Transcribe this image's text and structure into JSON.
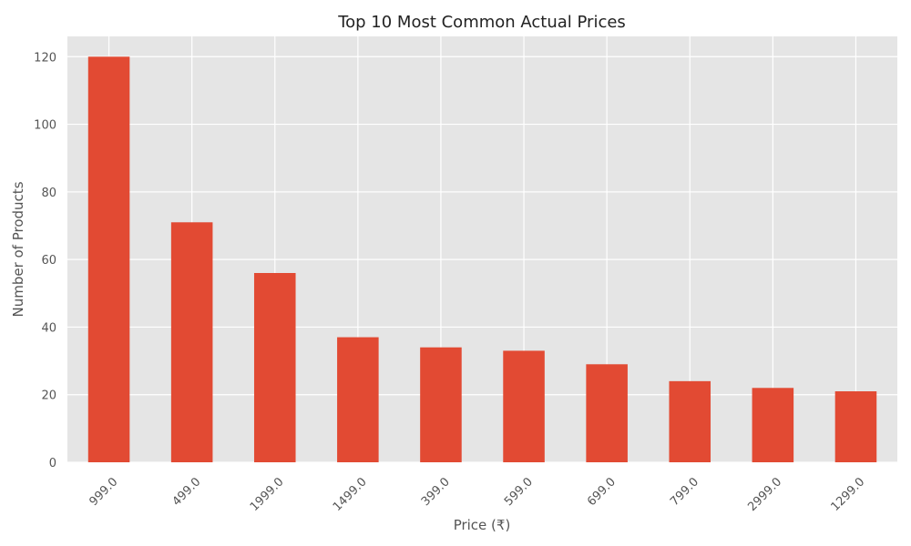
{
  "chart_data": {
    "type": "bar",
    "title": "Top 10 Most Common Actual Prices",
    "xlabel": "Price (₹)",
    "ylabel": "Number of Products",
    "categories": [
      "999.0",
      "499.0",
      "1999.0",
      "1499.0",
      "399.0",
      "599.0",
      "699.0",
      "799.0",
      "2999.0",
      "1299.0"
    ],
    "values": [
      120,
      71,
      56,
      37,
      34,
      33,
      29,
      24,
      22,
      21
    ],
    "ylim": [
      0,
      126
    ],
    "yticks": [
      "0",
      "20",
      "40",
      "60",
      "80",
      "100",
      "120"
    ],
    "grid": true,
    "colors": {
      "bar": "#E24A33",
      "plot_background": "#E5E5E5",
      "grid": "#FFFFFF"
    }
  }
}
